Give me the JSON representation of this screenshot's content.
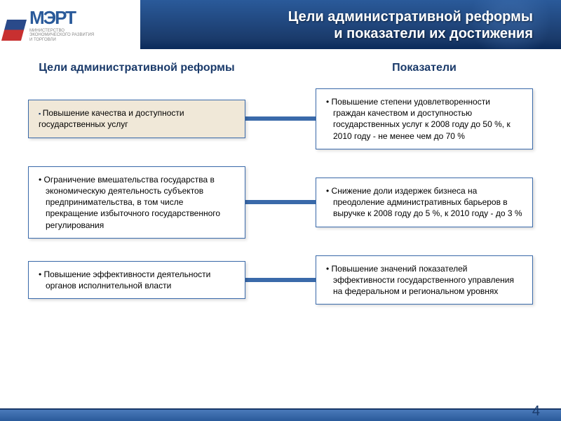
{
  "colors": {
    "header_dark": "#1a3a6a",
    "header_mid": "#2a5a9a",
    "accent": "#3a6aaa",
    "tan_bg": "#f0e8d8",
    "white": "#ffffff"
  },
  "logo": {
    "initials": "МЭРТ",
    "subtitle_line1": "МИНИСТЕРСТВО",
    "subtitle_line2": "ЭКОНОМИЧЕСКОГО РАЗВИТИЯ",
    "subtitle_line3": "И ТОРГОВЛИ"
  },
  "slide_title_line1": "Цели административной реформы",
  "slide_title_line2": "и показатели их достижения",
  "left_column_title": "Цели административной реформы",
  "right_column_title": "Показатели",
  "rows": [
    {
      "goal": "Повышение качества и доступности государственных услуг",
      "indicator": "Повышение степени удовлетворенности граждан качеством и доступностью государственных услуг к 2008 году до 50 %, к 2010 году - не менее чем до 70 %"
    },
    {
      "goal": "Ограничение вмешательства государства в экономическую деятельность субъектов предпринимательства, в том числе прекращение избыточного государственного регулирования",
      "indicator": "Снижение доли издержек бизнеса на преодоление административных барьеров в выручке к 2008 году до 5 %, к 2010 году - до 3 %"
    },
    {
      "goal": "Повышение эффективности деятельности органов исполнительной власти",
      "indicator": "Повышение значений показателей эффективности государственного управления на федеральном и региональном уровнях"
    }
  ],
  "page_number": "4"
}
